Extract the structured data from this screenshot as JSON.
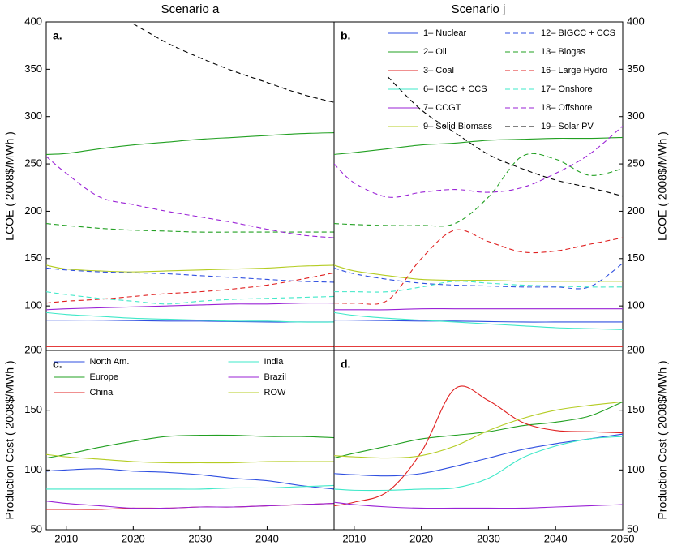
{
  "chart_data": [
    {
      "type": "line",
      "title": "Scenario a",
      "panel_label": "a.",
      "ylabel": "LCOE ( 2008$/MWh )",
      "yaxis_side": "left",
      "x": [
        2007,
        2010,
        2015,
        2020,
        2025,
        2030,
        2035,
        2040,
        2045,
        2050
      ],
      "xlim": [
        2007,
        2050
      ],
      "ylim": [
        53,
        400
      ],
      "yticks": [
        100,
        150,
        200,
        250,
        300,
        350,
        400
      ],
      "series": [
        {
          "color": "#2f4fe0",
          "linestyle": "solid",
          "values": [
            85,
            85,
            85,
            84.5,
            84,
            84,
            83.5,
            83,
            83,
            83
          ]
        },
        {
          "color": "#22a022",
          "linestyle": "solid",
          "values": [
            260,
            261,
            266,
            270,
            273,
            276,
            278,
            280,
            282,
            283
          ]
        },
        {
          "color": "#e02020",
          "linestyle": "solid",
          "values": [
            57,
            57,
            57,
            57,
            57,
            57,
            57,
            57,
            57,
            57
          ]
        },
        {
          "color": "#3ee8c8",
          "linestyle": "solid",
          "values": [
            93,
            91,
            89,
            87,
            86,
            85,
            84,
            84,
            83,
            83
          ]
        },
        {
          "color": "#9a22d6",
          "linestyle": "solid",
          "values": [
            96,
            97,
            98,
            99,
            100,
            101,
            102,
            102,
            103,
            103
          ]
        },
        {
          "color": "#b4cc22",
          "linestyle": "solid",
          "values": [
            143,
            139,
            137,
            136,
            137,
            138,
            139,
            140,
            142,
            143
          ]
        },
        {
          "color": "#2f4fe0",
          "linestyle": "dashed",
          "values": [
            140,
            138,
            136,
            135,
            134,
            132,
            130,
            128,
            126,
            125
          ]
        },
        {
          "color": "#22a022",
          "linestyle": "dashed",
          "values": [
            187,
            185,
            182,
            180,
            179,
            178,
            178,
            178,
            178,
            178
          ]
        },
        {
          "color": "#e02020",
          "linestyle": "dashed",
          "values": [
            103,
            105,
            107,
            110,
            113,
            115,
            118,
            122,
            128,
            135
          ]
        },
        {
          "color": "#3ee8c8",
          "linestyle": "dashed",
          "values": [
            115,
            112,
            108,
            105,
            102,
            105,
            107,
            108,
            109,
            110
          ]
        },
        {
          "color": "#9a22d6",
          "linestyle": "dashed",
          "values": [
            258,
            240,
            215,
            207,
            200,
            194,
            188,
            181,
            175,
            172
          ]
        },
        {
          "color": "#000000",
          "linestyle": "dashed",
          "values": [
            null,
            null,
            null,
            398,
            378,
            362,
            348,
            336,
            324,
            315
          ]
        }
      ]
    },
    {
      "type": "line",
      "title": "Scenario j",
      "panel_label": "b.",
      "ylabel": "LCOE ( 2008$/MWh )",
      "yaxis_side": "right",
      "legend": "upper right",
      "legend_columns": 2,
      "x": [
        2007,
        2010,
        2015,
        2020,
        2025,
        2030,
        2035,
        2040,
        2045,
        2050
      ],
      "xlim": [
        2007,
        2050
      ],
      "ylim": [
        53,
        400
      ],
      "yticks": [
        100,
        150,
        200,
        250,
        300,
        350,
        400
      ],
      "series": [
        {
          "name": "1– Nuclear",
          "color": "#2f4fe0",
          "linestyle": "solid",
          "values": [
            85,
            85,
            84.5,
            84,
            84,
            83.5,
            83,
            83,
            83,
            83
          ]
        },
        {
          "name": "2– Oil",
          "color": "#22a022",
          "linestyle": "solid",
          "values": [
            260,
            262,
            266,
            270,
            272,
            275,
            276,
            277,
            277,
            278
          ]
        },
        {
          "name": "3– Coal",
          "color": "#e02020",
          "linestyle": "solid",
          "values": [
            57,
            57,
            57,
            57,
            57,
            57,
            57,
            57,
            57,
            57
          ]
        },
        {
          "name": "6– IGCC + CCS",
          "color": "#3ee8c8",
          "linestyle": "solid",
          "values": [
            93,
            90,
            87,
            85,
            83,
            81,
            79,
            77,
            76,
            75
          ]
        },
        {
          "name": "7– CCGT",
          "color": "#9a22d6",
          "linestyle": "solid",
          "values": [
            96,
            96,
            96,
            97,
            97,
            97,
            97,
            97,
            97,
            97
          ]
        },
        {
          "name": "9– Solid Biomass",
          "color": "#b4cc22",
          "linestyle": "solid",
          "values": [
            143,
            137,
            132,
            128,
            127,
            127,
            126,
            126,
            126,
            126
          ]
        },
        {
          "name": "12– BIGCC + CCS",
          "color": "#2f4fe0",
          "linestyle": "dashed",
          "values": [
            140,
            134,
            128,
            124,
            122,
            121,
            120,
            120,
            120,
            145
          ]
        },
        {
          "name": "13– Biogas",
          "color": "#22a022",
          "linestyle": "dashed",
          "values": [
            187,
            186,
            185,
            185,
            187,
            215,
            258,
            255,
            238,
            245
          ]
        },
        {
          "name": "16– Large Hydro",
          "color": "#e02020",
          "linestyle": "dashed",
          "values": [
            103,
            103,
            106,
            150,
            180,
            168,
            157,
            158,
            165,
            172
          ]
        },
        {
          "name": "17– Onshore",
          "color": "#3ee8c8",
          "linestyle": "dashed",
          "values": [
            115,
            115,
            115,
            120,
            126,
            124,
            122,
            121,
            120,
            120
          ]
        },
        {
          "name": "18– Offshore",
          "color": "#9a22d6",
          "linestyle": "dashed",
          "values": [
            250,
            230,
            215,
            220,
            223,
            220,
            225,
            240,
            260,
            290
          ]
        },
        {
          "name": "19– Solar PV",
          "color": "#000000",
          "linestyle": "dashed",
          "values": [
            null,
            null,
            342,
            307,
            283,
            260,
            245,
            233,
            225,
            216
          ]
        }
      ]
    },
    {
      "type": "line",
      "panel_label": "c.",
      "ylabel": "Production Cost ( 2008$/MWh )",
      "yaxis_side": "left",
      "legend": "upper center",
      "legend_columns": 2,
      "x": [
        2007,
        2010,
        2015,
        2020,
        2025,
        2030,
        2035,
        2040,
        2045,
        2050
      ],
      "xlim": [
        2007,
        2050
      ],
      "ylim": [
        50,
        200
      ],
      "yticks": [
        50,
        100,
        150,
        200
      ],
      "xticks": [
        2010,
        2020,
        2030,
        2040
      ],
      "series": [
        {
          "name": "North Am.",
          "color": "#2f4fe0",
          "linestyle": "solid",
          "values": [
            99,
            100,
            101,
            99,
            98,
            96,
            93,
            91,
            87,
            84
          ]
        },
        {
          "name": "Europe",
          "color": "#22a022",
          "linestyle": "solid",
          "values": [
            110,
            113,
            119,
            124,
            128,
            129,
            129,
            128,
            128,
            127
          ]
        },
        {
          "name": "China",
          "color": "#e02020",
          "linestyle": "solid",
          "values": [
            67,
            67,
            67,
            68,
            68,
            69,
            69,
            70,
            71,
            72
          ]
        },
        {
          "name": "India",
          "color": "#3ee8c8",
          "linestyle": "solid",
          "values": [
            84,
            84,
            84,
            84,
            84,
            84,
            85,
            85,
            86,
            87
          ]
        },
        {
          "name": "Brazil",
          "color": "#9a22d6",
          "linestyle": "solid",
          "values": [
            74,
            72,
            70,
            68,
            68,
            69,
            69,
            70,
            71,
            72
          ]
        },
        {
          "name": "ROW",
          "color": "#b4cc22",
          "linestyle": "solid",
          "values": [
            113,
            111,
            109,
            107,
            106,
            106,
            106,
            107,
            107,
            107
          ]
        }
      ]
    },
    {
      "type": "line",
      "panel_label": "d.",
      "ylabel": "Production Cost ( 2008$/MWh )",
      "yaxis_side": "right",
      "x": [
        2007,
        2010,
        2015,
        2020,
        2025,
        2030,
        2035,
        2040,
        2045,
        2050
      ],
      "xlim": [
        2007,
        2050
      ],
      "ylim": [
        50,
        200
      ],
      "yticks": [
        50,
        100,
        150,
        200
      ],
      "xticks": [
        2010,
        2020,
        2030,
        2040,
        2050
      ],
      "series": [
        {
          "color": "#2f4fe0",
          "linestyle": "solid",
          "values": [
            97,
            96,
            95,
            97,
            103,
            110,
            117,
            122,
            126,
            130
          ]
        },
        {
          "color": "#22a022",
          "linestyle": "solid",
          "values": [
            110,
            114,
            120,
            126,
            129,
            132,
            137,
            140,
            145,
            157
          ]
        },
        {
          "color": "#e02020",
          "linestyle": "solid",
          "values": [
            70,
            73,
            82,
            115,
            168,
            158,
            140,
            133,
            132,
            131
          ]
        },
        {
          "color": "#3ee8c8",
          "linestyle": "solid",
          "values": [
            84,
            83,
            83,
            84,
            85,
            93,
            110,
            120,
            126,
            128
          ]
        },
        {
          "color": "#9a22d6",
          "linestyle": "solid",
          "values": [
            73,
            71,
            69,
            68,
            68,
            68,
            68,
            69,
            70,
            71
          ]
        },
        {
          "color": "#b4cc22",
          "linestyle": "solid",
          "values": [
            112,
            111,
            110,
            112,
            120,
            133,
            143,
            150,
            154,
            157
          ]
        }
      ]
    }
  ]
}
